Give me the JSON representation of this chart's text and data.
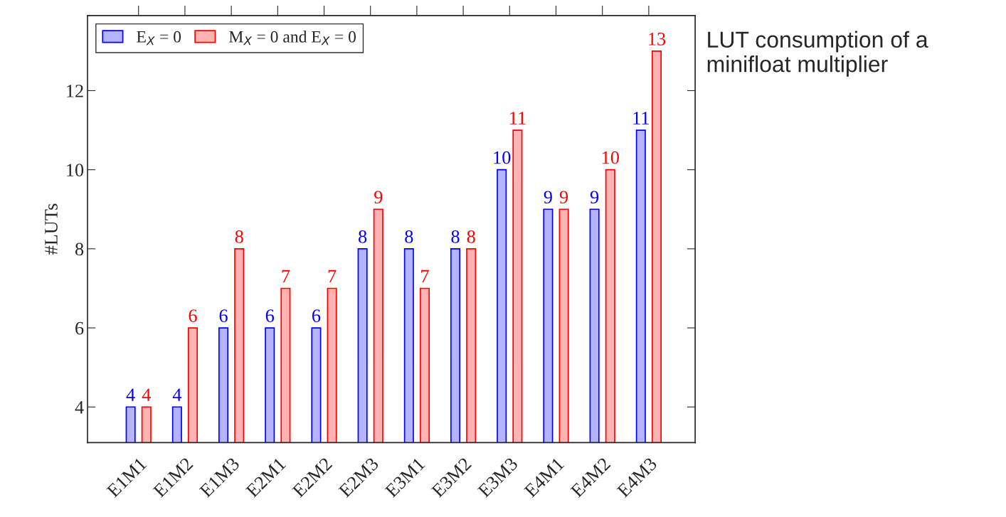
{
  "chart_data": {
    "type": "bar",
    "categories": [
      "E1M1",
      "E1M2",
      "E1M3",
      "E2M1",
      "E2M2",
      "E2M3",
      "E3M1",
      "E3M2",
      "E3M3",
      "E4M1",
      "E4M2",
      "E4M3"
    ],
    "series": [
      {
        "name": "E$_{X}$ = 0",
        "color": "#b3b3ff",
        "values": [
          4,
          4,
          6,
          6,
          6,
          8,
          8,
          8,
          10,
          9,
          9,
          11
        ]
      },
      {
        "name": "M$_{X}$ = 0 and E$_{X}$ = 0",
        "color": "#ffb3b3",
        "values": [
          4,
          6,
          8,
          7,
          7,
          9,
          7,
          8,
          11,
          9,
          10,
          13
        ]
      }
    ],
    "ylabel": "#LUTs",
    "ylim": [
      3.1,
      13.9
    ],
    "yticks": [
      4,
      6,
      8,
      10,
      12
    ],
    "data_labels": true,
    "legend": "top left",
    "grid": false,
    "annotations": [
      "LUT consumption of a minifloat multiplier"
    ]
  }
}
